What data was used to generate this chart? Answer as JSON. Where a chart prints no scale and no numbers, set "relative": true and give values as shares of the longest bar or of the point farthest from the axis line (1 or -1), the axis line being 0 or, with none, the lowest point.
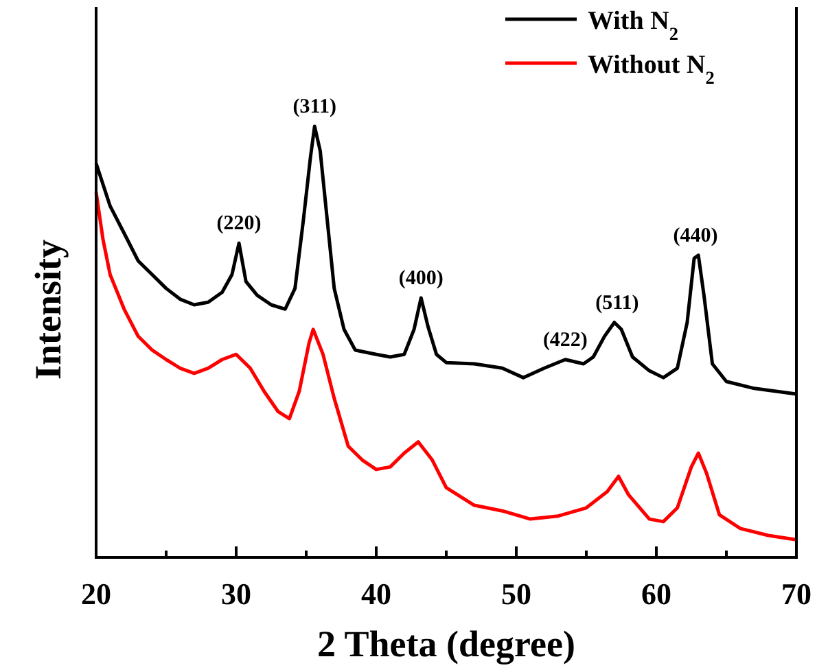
{
  "chart_data": {
    "type": "line",
    "relative": true,
    "xlabel": "2 Theta (degree)",
    "ylabel": "Intensity",
    "xlim": [
      20,
      70
    ],
    "xticks": [
      20,
      {
        "value": 25,
        "label": null
      },
      30,
      {
        "value": 35,
        "label": null
      },
      40,
      {
        "value": 45,
        "label": null
      },
      50,
      {
        "value": 55,
        "label": null
      },
      60,
      {
        "value": 65,
        "label": null
      },
      70
    ],
    "legend": "top right",
    "grid": false,
    "marker": "none",
    "line_style": "solid",
    "tick_labels": "x",
    "series": [
      {
        "name": "With N$_{2}$",
        "color": "#000000",
        "x": [
          20,
          21,
          22,
          23,
          24,
          25,
          26,
          27,
          28,
          29,
          29.7,
          30.2,
          30.7,
          31.5,
          32.5,
          33.5,
          34.2,
          34.8,
          35.3,
          35.6,
          36,
          36.5,
          37,
          37.7,
          38.5,
          40,
          41,
          42,
          42.7,
          43.2,
          43.7,
          44.3,
          45,
          47,
          49,
          50.5,
          52,
          53.5,
          54.8,
          55.5,
          56.3,
          57,
          57.5,
          58.3,
          59.5,
          60.5,
          61.5,
          62.2,
          62.7,
          63,
          63.4,
          64,
          65,
          67,
          70
        ],
        "values": [
          0.914,
          0.815,
          0.752,
          0.688,
          0.656,
          0.624,
          0.599,
          0.586,
          0.592,
          0.615,
          0.656,
          0.729,
          0.64,
          0.608,
          0.586,
          0.576,
          0.624,
          0.783,
          0.927,
          1,
          0.943,
          0.783,
          0.624,
          0.529,
          0.481,
          0.471,
          0.465,
          0.471,
          0.529,
          0.602,
          0.535,
          0.471,
          0.452,
          0.449,
          0.439,
          0.417,
          0.439,
          0.459,
          0.449,
          0.465,
          0.513,
          0.545,
          0.529,
          0.465,
          0.433,
          0.417,
          0.439,
          0.545,
          0.694,
          0.701,
          0.608,
          0.449,
          0.408,
          0.392,
          0.379
        ]
      },
      {
        "name": "Without N$_{2}$",
        "color": "#ff0000",
        "x": [
          20,
          20.5,
          21,
          22,
          23,
          24,
          25,
          26,
          27,
          28,
          29,
          30,
          31,
          32,
          33,
          33.8,
          34.5,
          35.2,
          35.5,
          36.2,
          37,
          38,
          39,
          40,
          41,
          42,
          43,
          44,
          45,
          47,
          49,
          51,
          53,
          55,
          56.5,
          57.3,
          58,
          59.5,
          60.5,
          61.5,
          62.5,
          63,
          63.6,
          64.5,
          66,
          68,
          70
        ],
        "values": [
          0.847,
          0.736,
          0.656,
          0.576,
          0.513,
          0.481,
          0.459,
          0.439,
          0.427,
          0.439,
          0.459,
          0.471,
          0.439,
          0.385,
          0.338,
          0.322,
          0.385,
          0.497,
          0.529,
          0.471,
          0.369,
          0.258,
          0.226,
          0.204,
          0.21,
          0.242,
          0.268,
          0.226,
          0.162,
          0.121,
          0.108,
          0.089,
          0.096,
          0.115,
          0.153,
          0.188,
          0.146,
          0.089,
          0.083,
          0.115,
          0.21,
          0.242,
          0.194,
          0.099,
          0.067,
          0.051,
          0.041
        ]
      }
    ],
    "annotations": [
      {
        "text": "(220)",
        "x": 30.2,
        "y": 0.729
      },
      {
        "text": "(311)",
        "x": 35.6,
        "y": 1
      },
      {
        "text": "(400)",
        "x": 43.2,
        "y": 0.602
      },
      {
        "text": "(422)",
        "x": 53.5,
        "y": 0.459
      },
      {
        "text": "(511)",
        "x": 57.2,
        "y": 0.545
      },
      {
        "text": "(440)",
        "x": 62.8,
        "y": 0.701
      }
    ]
  }
}
